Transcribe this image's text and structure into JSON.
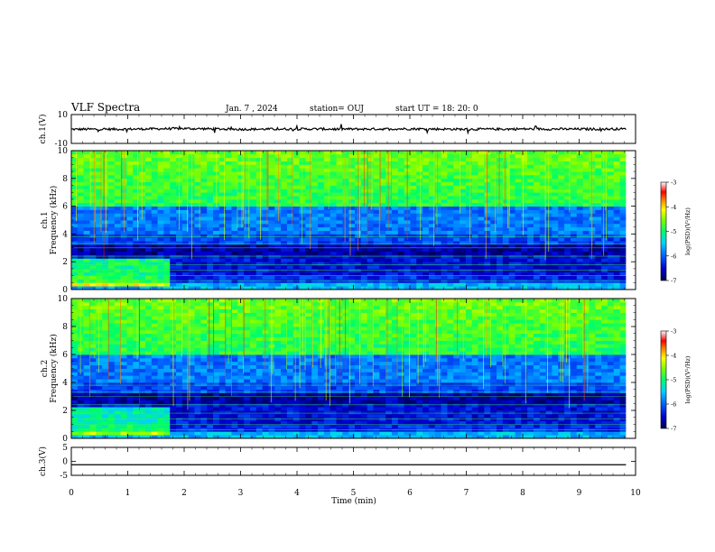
{
  "header": {
    "title": "VLF Spectra",
    "date": "Jan. 7 , 2024",
    "station": "station= OUJ",
    "start": "start  UT =   18: 20: 0"
  },
  "colors": {
    "spectrum_low": "#000050",
    "spectrum_mid": "#00ff66",
    "spectrum_high": "#ff0000",
    "trace": "#000000"
  },
  "chart_data": [
    {
      "type": "line",
      "panel": "ch1-waveform",
      "ylabel": "ch.1(V)",
      "ylim": [
        -10,
        10
      ],
      "yticks": [
        "10",
        "-10"
      ],
      "xlim": [
        0,
        10
      ],
      "series": [
        {
          "x": [
            0,
            1,
            2,
            3,
            4,
            5,
            6,
            7,
            8,
            9,
            9.83
          ],
          "values": [
            -0.2,
            -0.1,
            0.3,
            -0.2,
            0.0,
            -0.1,
            0.1,
            -0.2,
            0.0,
            -0.1,
            0.0
          ]
        }
      ]
    },
    {
      "type": "heatmap",
      "panel": "ch1-spectrogram",
      "ylabel": "ch.1\nFrequency (kHz)",
      "ylim": [
        0,
        10
      ],
      "yticks": [
        "0",
        "2",
        "4",
        "6",
        "8",
        "10"
      ],
      "xlim": [
        0,
        10
      ],
      "data_end_min": 9.83,
      "colorbar": {
        "label": "log(PSD)(V²/Hz)",
        "range": [
          -7,
          -3
        ],
        "ticks": [
          "-7",
          "-6",
          "-5",
          "-4",
          "-3"
        ]
      }
    },
    {
      "type": "heatmap",
      "panel": "ch2-spectrogram",
      "ylabel": "ch.2\nFrequency (kHz)",
      "ylim": [
        0,
        10
      ],
      "yticks": [
        "0",
        "2",
        "4",
        "6",
        "8",
        "10"
      ],
      "xlim": [
        0,
        10
      ],
      "data_end_min": 9.83,
      "colorbar": {
        "label": "log(PSD)(V²/Hz)",
        "range": [
          -7,
          -3
        ],
        "ticks": [
          "-7",
          "-6",
          "-5",
          "-4",
          "-3"
        ]
      }
    },
    {
      "type": "line",
      "panel": "ch3-waveform",
      "ylabel": "ch.3(V)",
      "ylim": [
        -5,
        5
      ],
      "yticks": [
        "5",
        "0",
        "-5"
      ],
      "xlim": [
        0,
        10
      ],
      "series": [
        {
          "x": [
            0,
            9.83
          ],
          "values": [
            -1.2,
            -1.2
          ]
        }
      ]
    }
  ],
  "xaxis": {
    "label": "Time (min)",
    "ticks": [
      "0",
      "1",
      "2",
      "3",
      "4",
      "5",
      "6",
      "7",
      "8",
      "9",
      "10"
    ]
  }
}
